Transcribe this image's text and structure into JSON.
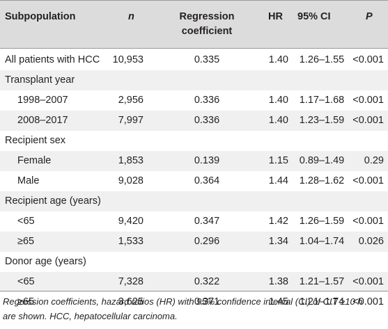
{
  "table": {
    "headers": {
      "subpopulation": "Subpopulation",
      "n": "n",
      "coef_line1": "Regression",
      "coef_line2": "coefficient",
      "hr": "HR",
      "ci": "95% CI",
      "p": "P"
    },
    "rows": [
      {
        "label": "All patients with HCC",
        "n": "10,953",
        "coef": "0.335",
        "hr": "1.40",
        "ci": "1.26–1.55",
        "p": "<0.001"
      },
      {
        "label": "Transplant year",
        "n": "",
        "coef": "",
        "hr": "",
        "ci": "",
        "p": ""
      },
      {
        "label": "1998–2007",
        "n": "2,956",
        "coef": "0.336",
        "hr": "1.40",
        "ci": "1.17–1.68",
        "p": "<0.001"
      },
      {
        "label": "2008–2017",
        "n": "7,997",
        "coef": "0.336",
        "hr": "1.40",
        "ci": "1.23–1.59",
        "p": "<0.001"
      },
      {
        "label": "Recipient sex",
        "n": "",
        "coef": "",
        "hr": "",
        "ci": "",
        "p": ""
      },
      {
        "label": "Female",
        "n": "1,853",
        "coef": "0.139",
        "hr": "1.15",
        "ci": "0.89–1.49",
        "p": "0.29"
      },
      {
        "label": "Male",
        "n": "9,028",
        "coef": "0.364",
        "hr": "1.44",
        "ci": "1.28–1.62",
        "p": "<0.001"
      },
      {
        "label": "Recipient age (years)",
        "n": "",
        "coef": "",
        "hr": "",
        "ci": "",
        "p": ""
      },
      {
        "label": "<65",
        "n": "9,420",
        "coef": "0.347",
        "hr": "1.42",
        "ci": "1.26–1.59",
        "p": "<0.001"
      },
      {
        "label": "≥65",
        "n": "1,533",
        "coef": "0.296",
        "hr": "1.34",
        "ci": "1.04–1.74",
        "p": "0.026"
      },
      {
        "label": "Donor age (years)",
        "n": "",
        "coef": "",
        "hr": "",
        "ci": "",
        "p": ""
      },
      {
        "label": "<65",
        "n": "7,328",
        "coef": "0.322",
        "hr": "1.38",
        "ci": "1.21–1.57",
        "p": "<0.001"
      },
      {
        "label": "≥65",
        "n": "3,625",
        "coef": "0.371",
        "hr": "1.45",
        "ci": "1.21–1.74",
        "p": "<0.001"
      }
    ]
  },
  "footnote": {
    "line1": "Regression coefficients, hazard ratios (HR) with 95% confidence interval (CI) of CIT ≥10 h",
    "line2": "are shown. HCC, hepatocellular carcinoma."
  }
}
